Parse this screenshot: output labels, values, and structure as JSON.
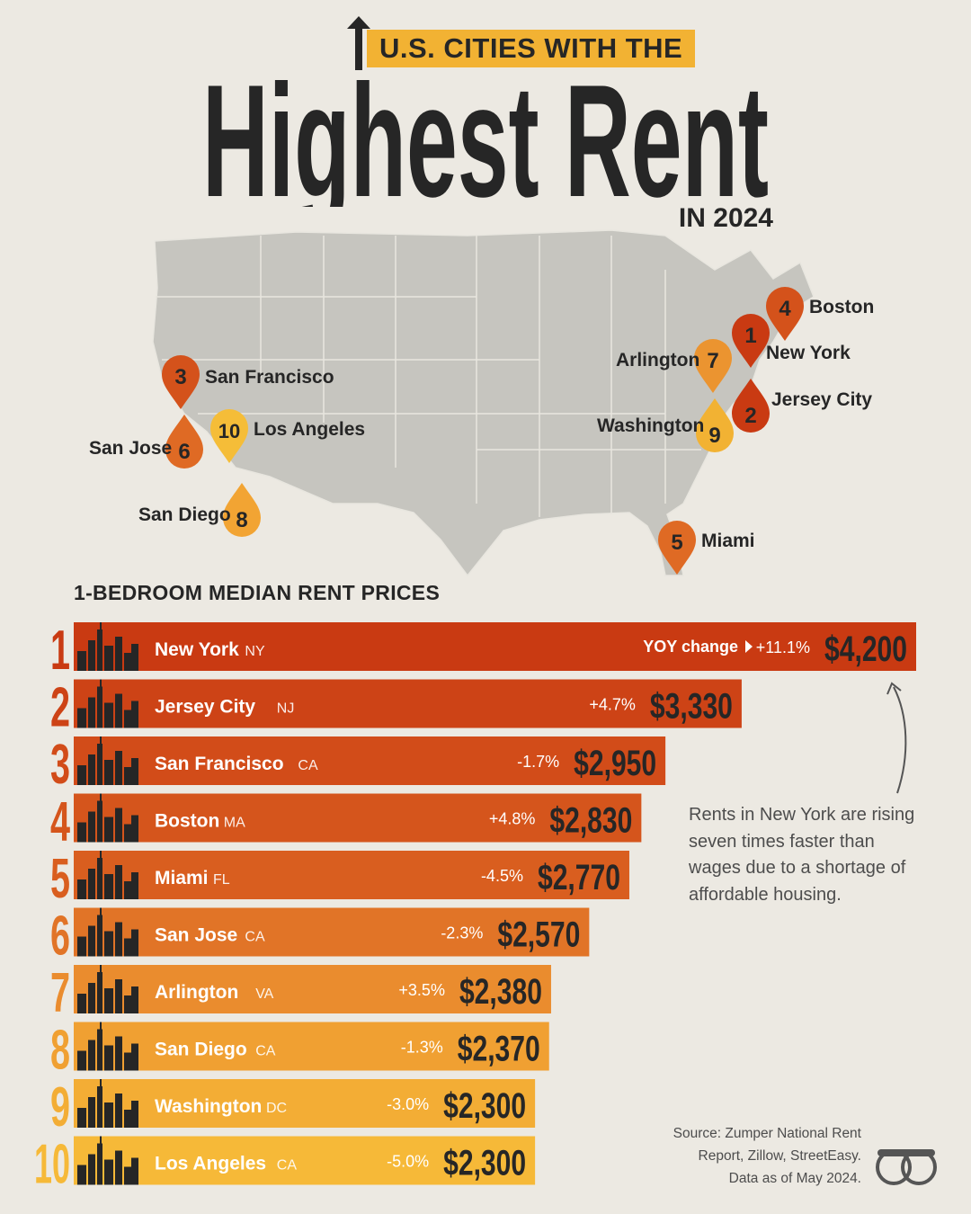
{
  "header": {
    "kicker": "U.S. CITIES WITH THE",
    "title": "Highest Rent",
    "subtitle": "IN 2024"
  },
  "map": {
    "pins": [
      {
        "rank": "1",
        "city": "New York",
        "color": "#c93a12"
      },
      {
        "rank": "2",
        "city": "Jersey City",
        "color": "#c93a12"
      },
      {
        "rank": "3",
        "city": "San Francisco",
        "color": "#d4521b"
      },
      {
        "rank": "4",
        "city": "Boston",
        "color": "#d4521b"
      },
      {
        "rank": "5",
        "city": "Miami",
        "color": "#df6a24"
      },
      {
        "rank": "6",
        "city": "San Jose",
        "color": "#df6a24"
      },
      {
        "rank": "7",
        "city": "Arlington",
        "color": "#eb9430"
      },
      {
        "rank": "8",
        "city": "San Diego",
        "color": "#f2a433"
      },
      {
        "rank": "9",
        "city": "Washington",
        "color": "#f2b233"
      },
      {
        "rank": "10",
        "city": "Los Angeles",
        "color": "#f5bd38"
      }
    ]
  },
  "section_title": "1-BEDROOM MEDIAN RENT PRICES",
  "chart_data": {
    "type": "bar",
    "orientation": "horizontal",
    "title": "1-BEDROOM MEDIAN RENT PRICES",
    "yoy_label": "YOY change",
    "categories": [
      "New York",
      "Jersey City",
      "San Francisco",
      "Boston",
      "Miami",
      "San Jose",
      "Arlington",
      "San Diego",
      "Washington",
      "Los Angeles"
    ],
    "states": [
      "NY",
      "NJ",
      "CA",
      "MA",
      "FL",
      "CA",
      "VA",
      "CA",
      "DC",
      "CA"
    ],
    "ranks": [
      "1",
      "2",
      "3",
      "4",
      "5",
      "6",
      "7",
      "8",
      "9",
      "10"
    ],
    "values": [
      4200,
      3330,
      2950,
      2830,
      2770,
      2570,
      2380,
      2370,
      2300,
      2300
    ],
    "value_labels": [
      "$4,200",
      "$3,330",
      "$2,950",
      "$2,830",
      "$2,770",
      "$2,570",
      "$2,380",
      "$2,370",
      "$2,300",
      "$2,300"
    ],
    "yoy_change": [
      "+11.1%",
      "+4.7%",
      "-1.7%",
      "+4.8%",
      "-4.5%",
      "-2.3%",
      "+3.5%",
      "-1.3%",
      "-3.0%",
      "-5.0%"
    ],
    "colors": [
      "#c93a12",
      "#cd4316",
      "#d24c19",
      "#d5551c",
      "#d95e1f",
      "#e17427",
      "#ea8c2e",
      "#f0a032",
      "#f3ad35",
      "#f6b938"
    ]
  },
  "annotation": "Rents in New York are rising seven times faster than wages due to a shortage of affordable housing.",
  "source": {
    "line1": "Source: Zumper National Rent",
    "line2": "Report, Zillow, StreetEasy.",
    "line3": "Data as of May 2024."
  },
  "icons": {
    "header_arrow": "up-arrow-icon",
    "yoy_arrow": "triangle-right-icon",
    "annotation_arrow": "curved-arrow-icon",
    "logo": "visual-capitalist-logo-icon"
  }
}
